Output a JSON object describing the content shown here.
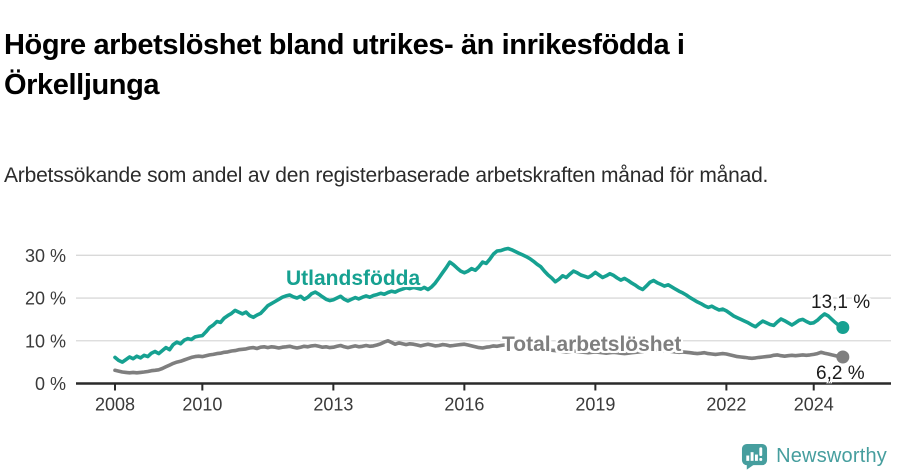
{
  "chart_data": {
    "type": "line",
    "title": "Högre arbetslöshet bland utrikes- än inrikesfödda i Örkelljunga",
    "subtitle": "Arbetssökande som andel av den registerbaserade arbetskraften månad för månad.",
    "x_unit": "month",
    "x_range": [
      "2008-01",
      "2024-09"
    ],
    "ylim": [
      0,
      33
    ],
    "grid": true,
    "y_ticks": [
      {
        "label": "0 %",
        "value": 0
      },
      {
        "label": "10 %",
        "value": 10
      },
      {
        "label": "20 %",
        "value": 20
      },
      {
        "label": "30 %",
        "value": 30
      }
    ],
    "x_ticks": [
      {
        "label": "2008",
        "year": 2008
      },
      {
        "label": "2010",
        "year": 2010
      },
      {
        "label": "2013",
        "year": 2013
      },
      {
        "label": "2016",
        "year": 2016
      },
      {
        "label": "2019",
        "year": 2019
      },
      {
        "label": "2022",
        "year": 2022
      },
      {
        "label": "2024",
        "year": 2024
      }
    ],
    "series": [
      {
        "name": "Utlandsfödda",
        "color": "#16a191",
        "end_label": "13,1 %",
        "end_value": 13.1,
        "start_year": 2008,
        "values": [
          6.1,
          5.4,
          5.0,
          5.6,
          6.2,
          5.8,
          6.4,
          6.0,
          6.6,
          6.3,
          7.1,
          7.5,
          7.0,
          7.7,
          8.4,
          7.9,
          9.1,
          9.7,
          9.3,
          10.1,
          10.5,
          10.3,
          10.9,
          11.1,
          11.2,
          12.1,
          13.1,
          13.7,
          14.5,
          14.3,
          15.3,
          15.9,
          16.4,
          17.1,
          16.7,
          16.3,
          16.7,
          15.9,
          15.5,
          16.0,
          16.4,
          17.3,
          18.2,
          18.7,
          19.2,
          19.7,
          20.2,
          20.5,
          20.7,
          20.3,
          20.0,
          20.4,
          19.7,
          20.2,
          21.0,
          21.4,
          20.9,
          20.3,
          19.7,
          19.4,
          19.6,
          20.0,
          20.4,
          19.7,
          19.3,
          19.7,
          20.1,
          19.8,
          20.2,
          20.5,
          20.2,
          20.6,
          20.8,
          21.1,
          20.9,
          21.3,
          21.6,
          21.4,
          21.8,
          22.1,
          22.4,
          22.2,
          22.5,
          22.3,
          22.1,
          22.5,
          22.0,
          22.6,
          23.5,
          24.7,
          25.9,
          27.1,
          28.4,
          27.8,
          27.0,
          26.3,
          25.9,
          26.3,
          26.9,
          26.5,
          27.3,
          28.4,
          28.1,
          29.1,
          30.3,
          31.0,
          31.1,
          31.4,
          31.6,
          31.3,
          30.9,
          30.5,
          30.1,
          29.7,
          29.2,
          28.6,
          27.9,
          27.3,
          26.3,
          25.4,
          24.7,
          23.8,
          24.4,
          25.2,
          24.8,
          25.6,
          26.3,
          25.9,
          25.4,
          25.1,
          24.8,
          25.3,
          26.0,
          25.4,
          24.8,
          25.2,
          25.7,
          25.3,
          24.7,
          24.2,
          24.6,
          24.1,
          23.5,
          23.0,
          22.4,
          22.0,
          22.8,
          23.7,
          24.1,
          23.6,
          23.2,
          22.8,
          23.1,
          22.6,
          22.1,
          21.6,
          21.2,
          20.7,
          20.1,
          19.6,
          19.1,
          18.7,
          18.2,
          17.8,
          18.1,
          17.6,
          17.2,
          17.4,
          17.0,
          16.4,
          15.8,
          15.4,
          15.0,
          14.6,
          14.2,
          13.7,
          13.3,
          14.0,
          14.6,
          14.2,
          13.8,
          13.6,
          14.4,
          15.1,
          14.7,
          14.2,
          13.7,
          14.2,
          14.8,
          15.0,
          14.5,
          14.1,
          14.2,
          14.8,
          15.6,
          16.3,
          15.8,
          15.0,
          14.2,
          13.5,
          13.1
        ]
      },
      {
        "name": "Total arbetslöshet",
        "color": "#7f7f7f",
        "end_label": "6,2 %",
        "end_value": 6.2,
        "start_year": 2008,
        "values": [
          3.1,
          2.9,
          2.7,
          2.6,
          2.5,
          2.6,
          2.5,
          2.6,
          2.7,
          2.8,
          3.0,
          3.1,
          3.2,
          3.5,
          3.9,
          4.3,
          4.7,
          5.0,
          5.2,
          5.5,
          5.8,
          6.1,
          6.3,
          6.4,
          6.3,
          6.5,
          6.7,
          6.8,
          7.0,
          7.1,
          7.3,
          7.4,
          7.6,
          7.7,
          7.9,
          8.0,
          8.1,
          8.3,
          8.4,
          8.2,
          8.5,
          8.6,
          8.4,
          8.6,
          8.5,
          8.3,
          8.5,
          8.6,
          8.7,
          8.5,
          8.3,
          8.5,
          8.7,
          8.6,
          8.8,
          8.9,
          8.7,
          8.5,
          8.6,
          8.4,
          8.5,
          8.7,
          8.9,
          8.6,
          8.4,
          8.6,
          8.8,
          8.6,
          8.7,
          8.9,
          8.7,
          8.8,
          9.0,
          9.3,
          9.7,
          10.0,
          9.6,
          9.2,
          9.5,
          9.3,
          9.1,
          9.3,
          9.2,
          9.0,
          8.8,
          9.0,
          9.2,
          9.0,
          8.8,
          8.9,
          9.1,
          9.0,
          8.8,
          8.9,
          9.0,
          9.1,
          9.2,
          9.0,
          8.8,
          8.6,
          8.4,
          8.3,
          8.5,
          8.6,
          8.8,
          8.7,
          8.9,
          9.0,
          8.9,
          8.7,
          8.6,
          8.4,
          8.3,
          8.2,
          8.4,
          8.5,
          8.3,
          8.2,
          8.0,
          7.9,
          7.8,
          7.7,
          7.6,
          7.5,
          7.4,
          7.5,
          7.6,
          7.5,
          7.4,
          7.3,
          7.2,
          7.3,
          7.4,
          7.3,
          7.2,
          7.1,
          7.2,
          7.3,
          7.2,
          7.1,
          7.0,
          7.1,
          7.2,
          7.3,
          7.4,
          7.5,
          7.8,
          8.1,
          8.0,
          7.9,
          7.8,
          7.7,
          7.6,
          7.5,
          7.4,
          7.3,
          7.4,
          7.3,
          7.2,
          7.1,
          7.0,
          7.1,
          7.2,
          7.0,
          6.9,
          6.8,
          6.9,
          7.0,
          6.9,
          6.7,
          6.5,
          6.3,
          6.2,
          6.1,
          6.0,
          5.9,
          6.0,
          6.1,
          6.2,
          6.3,
          6.4,
          6.6,
          6.7,
          6.5,
          6.4,
          6.5,
          6.6,
          6.5,
          6.6,
          6.7,
          6.6,
          6.7,
          6.8,
          7.0,
          7.3,
          7.1,
          6.9,
          6.7,
          6.5,
          6.3,
          6.2
        ]
      }
    ],
    "legend_position": "inline-labels"
  },
  "footer": {
    "brand": "Newsworthy",
    "brand_color": "#469e9e"
  }
}
